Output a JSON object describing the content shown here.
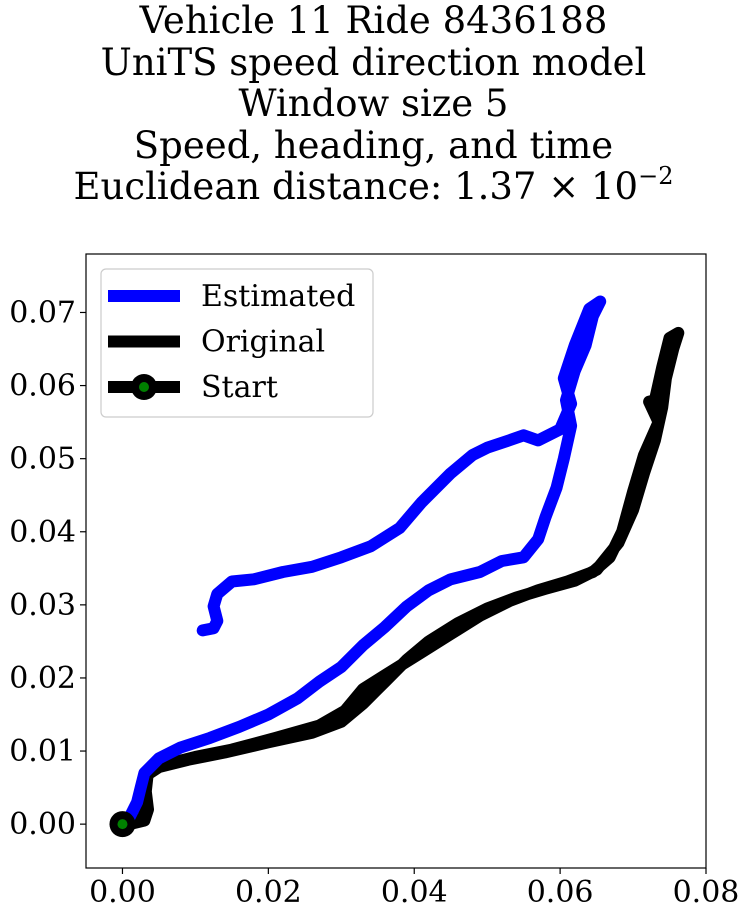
{
  "chart_data": {
    "type": "line",
    "title_lines": [
      "Vehicle 11 Ride 8436188",
      "UniTS speed direction model",
      "Window size 5",
      "Speed, heading, and time"
    ],
    "title_distance_prefix": "Euclidean distance: 1.37 × 10",
    "title_distance_exponent": "−2",
    "xlim": [
      -0.005,
      0.08
    ],
    "ylim": [
      -0.006,
      0.078
    ],
    "xticks": [
      0.0,
      0.02,
      0.04,
      0.06,
      0.08
    ],
    "yticks": [
      0.0,
      0.01,
      0.02,
      0.03,
      0.04,
      0.05,
      0.06,
      0.07
    ],
    "xtick_labels": [
      "0.00",
      "0.02",
      "0.04",
      "0.06",
      "0.08"
    ],
    "ytick_labels": [
      "0.00",
      "0.01",
      "0.02",
      "0.03",
      "0.04",
      "0.05",
      "0.06",
      "0.07"
    ],
    "grid": false,
    "legend_position": "top-left",
    "series": [
      {
        "name": "Estimated",
        "color": "#0000ff",
        "points": [
          [
            0.0,
            0.0
          ],
          [
            0.001,
            0.001
          ],
          [
            0.002,
            0.003
          ],
          [
            0.0025,
            0.005
          ],
          [
            0.003,
            0.007
          ],
          [
            0.005,
            0.009
          ],
          [
            0.008,
            0.0105
          ],
          [
            0.012,
            0.0118
          ],
          [
            0.016,
            0.0133
          ],
          [
            0.02,
            0.015
          ],
          [
            0.024,
            0.0172
          ],
          [
            0.027,
            0.0195
          ],
          [
            0.03,
            0.0215
          ],
          [
            0.033,
            0.0245
          ],
          [
            0.036,
            0.027
          ],
          [
            0.039,
            0.0298
          ],
          [
            0.042,
            0.032
          ],
          [
            0.045,
            0.0335
          ],
          [
            0.049,
            0.0345
          ],
          [
            0.052,
            0.036
          ],
          [
            0.055,
            0.0365
          ],
          [
            0.057,
            0.039
          ],
          [
            0.058,
            0.042
          ],
          [
            0.0595,
            0.046
          ],
          [
            0.0605,
            0.05
          ],
          [
            0.0615,
            0.0545
          ],
          [
            0.0608,
            0.058
          ],
          [
            0.062,
            0.062
          ],
          [
            0.0635,
            0.0655
          ],
          [
            0.0645,
            0.0695
          ],
          [
            0.0655,
            0.0715
          ],
          [
            0.064,
            0.0705
          ],
          [
            0.062,
            0.0655
          ],
          [
            0.0605,
            0.061
          ],
          [
            0.0615,
            0.0575
          ],
          [
            0.06,
            0.054
          ],
          [
            0.057,
            0.0525
          ],
          [
            0.055,
            0.0532
          ],
          [
            0.053,
            0.0525
          ],
          [
            0.05,
            0.0515
          ],
          [
            0.048,
            0.0505
          ],
          [
            0.045,
            0.048
          ],
          [
            0.041,
            0.044
          ],
          [
            0.038,
            0.0405
          ],
          [
            0.034,
            0.038
          ],
          [
            0.03,
            0.0365
          ],
          [
            0.026,
            0.0352
          ],
          [
            0.022,
            0.0345
          ],
          [
            0.018,
            0.0335
          ],
          [
            0.015,
            0.0332
          ],
          [
            0.013,
            0.0315
          ],
          [
            0.0125,
            0.0298
          ],
          [
            0.013,
            0.0278
          ],
          [
            0.0125,
            0.0268
          ],
          [
            0.011,
            0.0265
          ]
        ]
      },
      {
        "name": "Original",
        "color": "#000000",
        "points": [
          [
            0.0,
            0.0
          ],
          [
            0.002,
            0.0005
          ],
          [
            0.003,
            0.001
          ],
          [
            0.0028,
            0.004
          ],
          [
            0.003,
            0.0065
          ],
          [
            0.005,
            0.0078
          ],
          [
            0.009,
            0.0088
          ],
          [
            0.014,
            0.0098
          ],
          [
            0.02,
            0.0112
          ],
          [
            0.026,
            0.0125
          ],
          [
            0.03,
            0.014
          ],
          [
            0.033,
            0.0165
          ],
          [
            0.036,
            0.0195
          ],
          [
            0.039,
            0.0225
          ],
          [
            0.042,
            0.025
          ],
          [
            0.046,
            0.0275
          ],
          [
            0.05,
            0.0295
          ],
          [
            0.054,
            0.031
          ],
          [
            0.058,
            0.0322
          ],
          [
            0.062,
            0.0333
          ],
          [
            0.065,
            0.0348
          ],
          [
            0.068,
            0.0385
          ],
          [
            0.07,
            0.043
          ],
          [
            0.0715,
            0.048
          ],
          [
            0.073,
            0.0525
          ],
          [
            0.074,
            0.057
          ],
          [
            0.0745,
            0.061
          ],
          [
            0.0755,
            0.065
          ],
          [
            0.0762,
            0.0672
          ],
          [
            0.075,
            0.0665
          ],
          [
            0.074,
            0.0625
          ],
          [
            0.073,
            0.058
          ],
          [
            0.0722,
            0.0578
          ],
          [
            0.0735,
            0.055
          ],
          [
            0.0715,
            0.0505
          ],
          [
            0.07,
            0.0455
          ],
          [
            0.0685,
            0.04
          ],
          [
            0.0668,
            0.0365
          ],
          [
            0.0645,
            0.0345
          ],
          [
            0.061,
            0.0332
          ],
          [
            0.057,
            0.032
          ],
          [
            0.053,
            0.0305
          ],
          [
            0.049,
            0.0285
          ],
          [
            0.045,
            0.026
          ],
          [
            0.041,
            0.0235
          ],
          [
            0.037,
            0.021
          ],
          [
            0.033,
            0.0185
          ],
          [
            0.0305,
            0.0155
          ],
          [
            0.027,
            0.0135
          ],
          [
            0.021,
            0.0118
          ],
          [
            0.015,
            0.0102
          ],
          [
            0.01,
            0.0092
          ],
          [
            0.006,
            0.0082
          ],
          [
            0.0035,
            0.0072
          ],
          [
            0.0032,
            0.0045
          ],
          [
            0.0035,
            0.002
          ],
          [
            0.003,
            0.0005
          ],
          [
            0.001,
            0.0
          ]
        ]
      }
    ],
    "start_point": [
      0.0,
      0.0
    ],
    "legend": [
      {
        "label": "Estimated",
        "color": "#0000ff",
        "marker": false
      },
      {
        "label": "Original",
        "color": "#000000",
        "marker": false
      },
      {
        "label": "Start",
        "color": "#000000",
        "marker": true,
        "marker_face": "#008000"
      }
    ]
  }
}
